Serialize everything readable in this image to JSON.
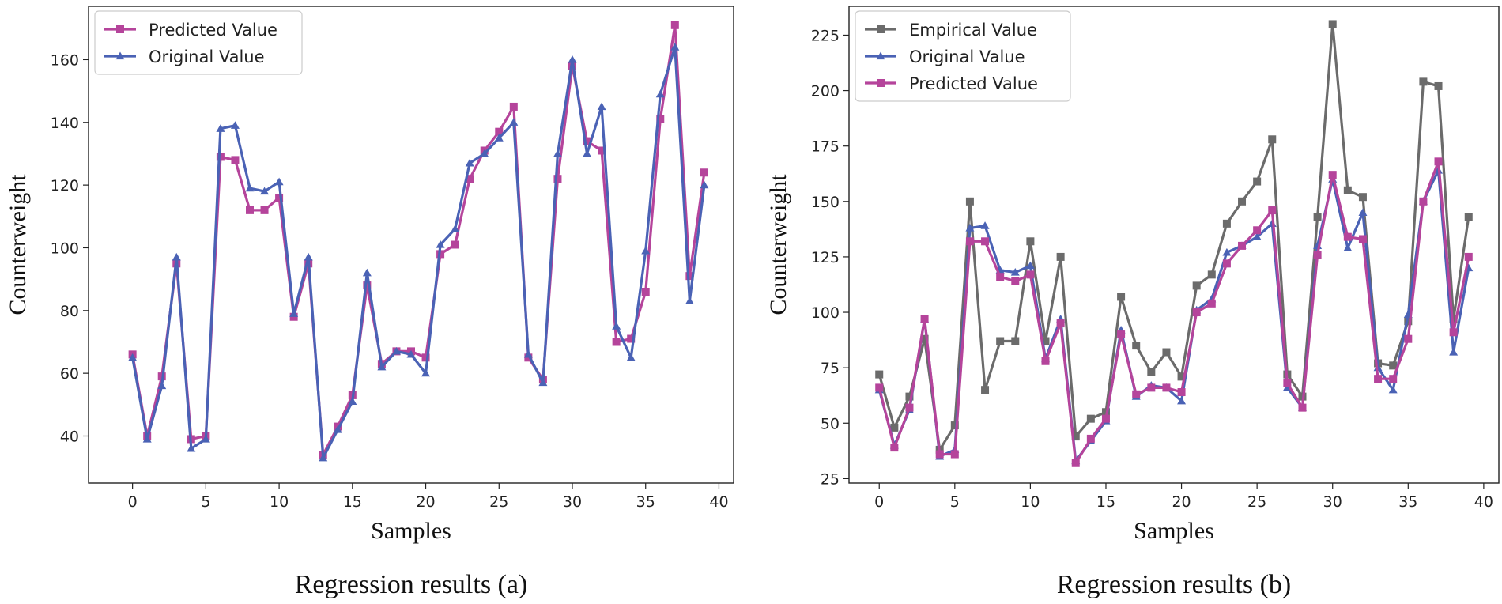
{
  "chart_data": [
    {
      "type": "line",
      "caption": "Regression results (a)",
      "xlabel": "Samples",
      "ylabel": "Counterweight",
      "xlim": [
        -3,
        41
      ],
      "ylim": [
        25,
        177
      ],
      "xticks": [
        0,
        5,
        10,
        15,
        20,
        25,
        30,
        35,
        40
      ],
      "yticks": [
        40,
        60,
        80,
        100,
        120,
        140,
        160
      ],
      "legend_position": "upper-left",
      "grid": false,
      "series": [
        {
          "name": "Predicted Value",
          "color": "#b5449b",
          "marker": "square",
          "values": [
            66,
            40,
            59,
            95,
            39,
            40,
            129,
            128,
            112,
            112,
            116,
            78,
            95,
            34,
            43,
            53,
            88,
            63,
            67,
            67,
            65,
            98,
            101,
            122,
            131,
            137,
            145,
            65,
            58,
            122,
            158,
            134,
            131,
            70,
            71,
            86,
            141,
            171,
            91,
            124
          ]
        },
        {
          "name": "Original Value",
          "color": "#4a62b5",
          "marker": "triangle",
          "values": [
            65,
            39,
            56,
            97,
            36,
            39,
            138,
            139,
            119,
            118,
            121,
            79,
            97,
            33,
            42,
            51,
            92,
            62,
            67,
            66,
            60,
            101,
            106,
            127,
            130,
            135,
            140,
            66,
            57,
            130,
            160,
            130,
            145,
            75,
            65,
            99,
            149,
            164,
            83,
            120
          ]
        }
      ]
    },
    {
      "type": "line",
      "caption": "Regression results (b)",
      "xlabel": "Samples",
      "ylabel": "Counterweight",
      "xlim": [
        -2,
        41
      ],
      "ylim": [
        23,
        238
      ],
      "xticks": [
        0,
        5,
        10,
        15,
        20,
        25,
        30,
        35,
        40
      ],
      "yticks": [
        25,
        50,
        75,
        100,
        125,
        150,
        175,
        200,
        225
      ],
      "legend_position": "upper-left",
      "grid": false,
      "series": [
        {
          "name": "Empirical Value",
          "color": "#6b6b6b",
          "marker": "square",
          "values": [
            72,
            48,
            62,
            88,
            38,
            49,
            150,
            65,
            87,
            87,
            132,
            87,
            125,
            44,
            52,
            55,
            107,
            85,
            73,
            82,
            71,
            112,
            117,
            140,
            150,
            159,
            178,
            72,
            62,
            143,
            230,
            155,
            152,
            77,
            76,
            96,
            204,
            202,
            97,
            143
          ]
        },
        {
          "name": "Original Value",
          "color": "#4a62b5",
          "marker": "triangle",
          "values": [
            65,
            40,
            56,
            97,
            35,
            38,
            138,
            139,
            119,
            118,
            121,
            79,
            97,
            33,
            42,
            51,
            92,
            62,
            67,
            66,
            60,
            101,
            106,
            127,
            130,
            134,
            140,
            66,
            57,
            130,
            160,
            129,
            145,
            75,
            65,
            99,
            150,
            164,
            82,
            120
          ]
        },
        {
          "name": "Predicted Value",
          "color": "#b5449b",
          "marker": "square",
          "values": [
            66,
            39,
            57,
            97,
            36,
            36,
            132,
            132,
            116,
            114,
            117,
            78,
            95,
            32,
            43,
            52,
            90,
            63,
            66,
            66,
            64,
            100,
            104,
            122,
            130,
            137,
            146,
            68,
            57,
            126,
            162,
            134,
            133,
            70,
            70,
            88,
            150,
            168,
            91,
            125
          ]
        }
      ]
    }
  ]
}
